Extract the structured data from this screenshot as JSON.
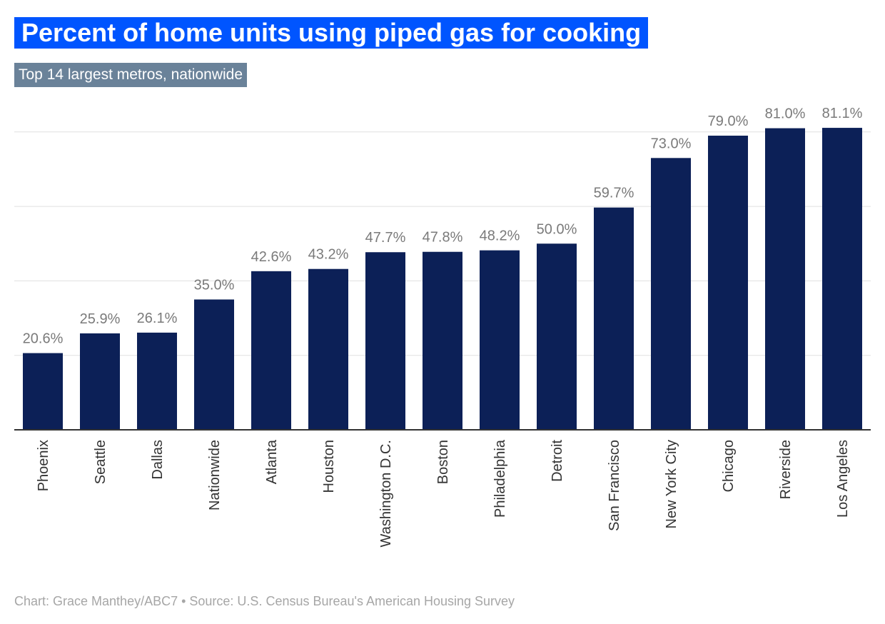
{
  "title": "Percent of home units using piped gas for cooking",
  "subtitle": "Top 14 largest metros, nationwide",
  "footer": "Chart: Grace Manthey/ABC7 • Source: U.S. Census Bureau's American Housing Survey",
  "colors": {
    "bar": "#0c2057",
    "title_bg": "#0055ff",
    "subtitle_bg": "#6a8299",
    "value_label": "#7a7a7a",
    "category_label": "#333333",
    "grid": "#e0e0e0",
    "axis": "#333333"
  },
  "chart_data": {
    "type": "bar",
    "categories": [
      "Phoenix",
      "Seattle",
      "Dallas",
      "Nationwide",
      "Atlanta",
      "Houston",
      "Washington D.C.",
      "Boston",
      "Philadelphia",
      "Detroit",
      "San Francisco",
      "New York City",
      "Chicago",
      "Riverside",
      "Los Angeles"
    ],
    "values": [
      20.6,
      25.9,
      26.1,
      35.0,
      42.6,
      43.2,
      47.7,
      47.8,
      48.2,
      50.0,
      59.7,
      73.0,
      79.0,
      81.0,
      81.1
    ],
    "value_labels": [
      "20.6%",
      "25.9%",
      "26.1%",
      "35.0%",
      "42.6%",
      "43.2%",
      "47.7%",
      "47.8%",
      "48.2%",
      "50.0%",
      "59.7%",
      "73.0%",
      "79.0%",
      "81.0%",
      "81.1%"
    ],
    "ylim": [
      0,
      80
    ],
    "y_gridlines": [
      20,
      40,
      60,
      80
    ],
    "y_tick_labels_shown": false,
    "grid": true,
    "legend": "none"
  }
}
